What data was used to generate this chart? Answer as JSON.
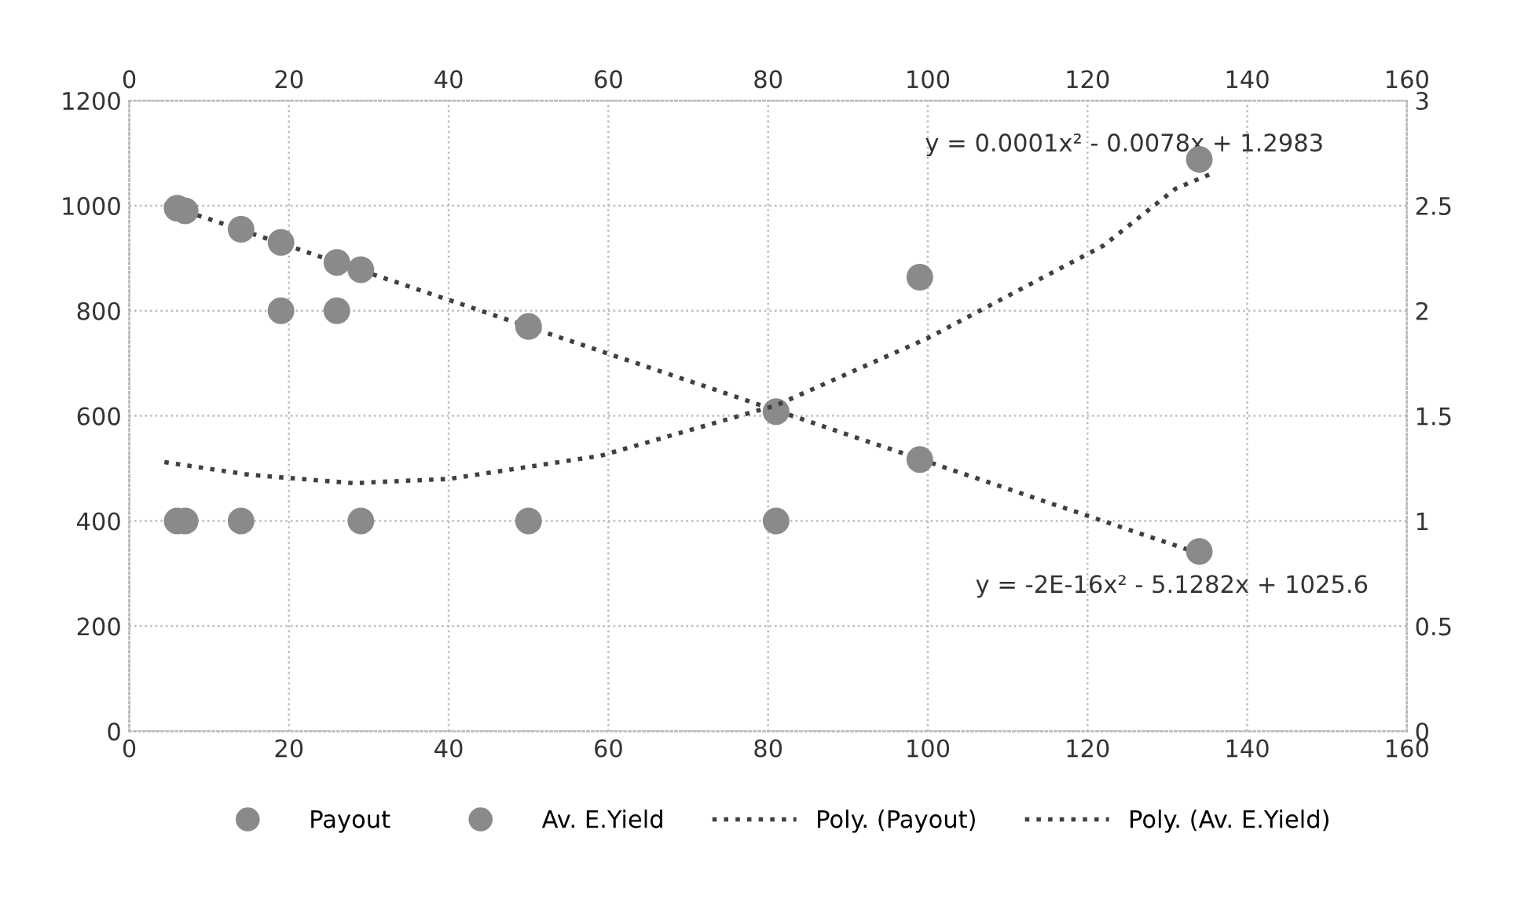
{
  "chart_data": {
    "type": "scatter",
    "marker": "circle",
    "grid": true,
    "legend": "bottom",
    "xlim": [
      0,
      160
    ],
    "xticks": [
      0,
      20,
      40,
      60,
      80,
      100,
      120,
      140,
      160
    ],
    "x2lim": [
      0,
      160
    ],
    "x2ticks": [
      0,
      20,
      40,
      60,
      80,
      100,
      120,
      140,
      160
    ],
    "ylim": [
      0,
      1200
    ],
    "yticks": [
      0,
      200,
      400,
      600,
      800,
      1000,
      1200
    ],
    "y2lim": [
      0,
      3
    ],
    "y2ticks": [
      0,
      0.5,
      1,
      1.5,
      2,
      2.5,
      3
    ],
    "series": [
      {
        "name": "Payout",
        "color": "#8a8a8a",
        "x": [
          6,
          7,
          14,
          19,
          26,
          29,
          50,
          81,
          99,
          134
        ],
        "values": [
          995,
          990,
          955,
          930,
          892,
          878,
          770,
          608,
          517,
          342
        ]
      },
      {
        "name": "Av. E.Yield",
        "axis": "y2",
        "color": "#8a8a8a",
        "x": [
          6,
          7,
          14,
          19,
          26,
          29,
          50,
          81,
          99,
          134
        ],
        "values": [
          1,
          1,
          1,
          2,
          2,
          1,
          1,
          1,
          2.16,
          2.72
        ]
      },
      {
        "name": "Poly. (Payout)",
        "type": "line",
        "line_style": "dotted",
        "marker": "none",
        "color": "#404040",
        "x": [
          4.4,
          70,
          134
        ],
        "values": [
          1003,
          667,
          338
        ]
      },
      {
        "name": "Poly. (Av. E.Yield)",
        "type": "line",
        "line_style": "dotted",
        "marker": "none",
        "axis": "y2",
        "color": "#404040",
        "x": [
          4.4,
          15,
          28,
          40,
          59,
          81,
          100,
          122,
          131,
          136
        ],
        "values": [
          1.28,
          1.22,
          1.18,
          1.2,
          1.31,
          1.55,
          1.87,
          2.31,
          2.58,
          2.66
        ]
      }
    ],
    "annotations": [
      "y = 0.0001x² - 0.0078x + 1.2983",
      "y = -2E-16x² - 5.1282x + 1025.6"
    ]
  }
}
